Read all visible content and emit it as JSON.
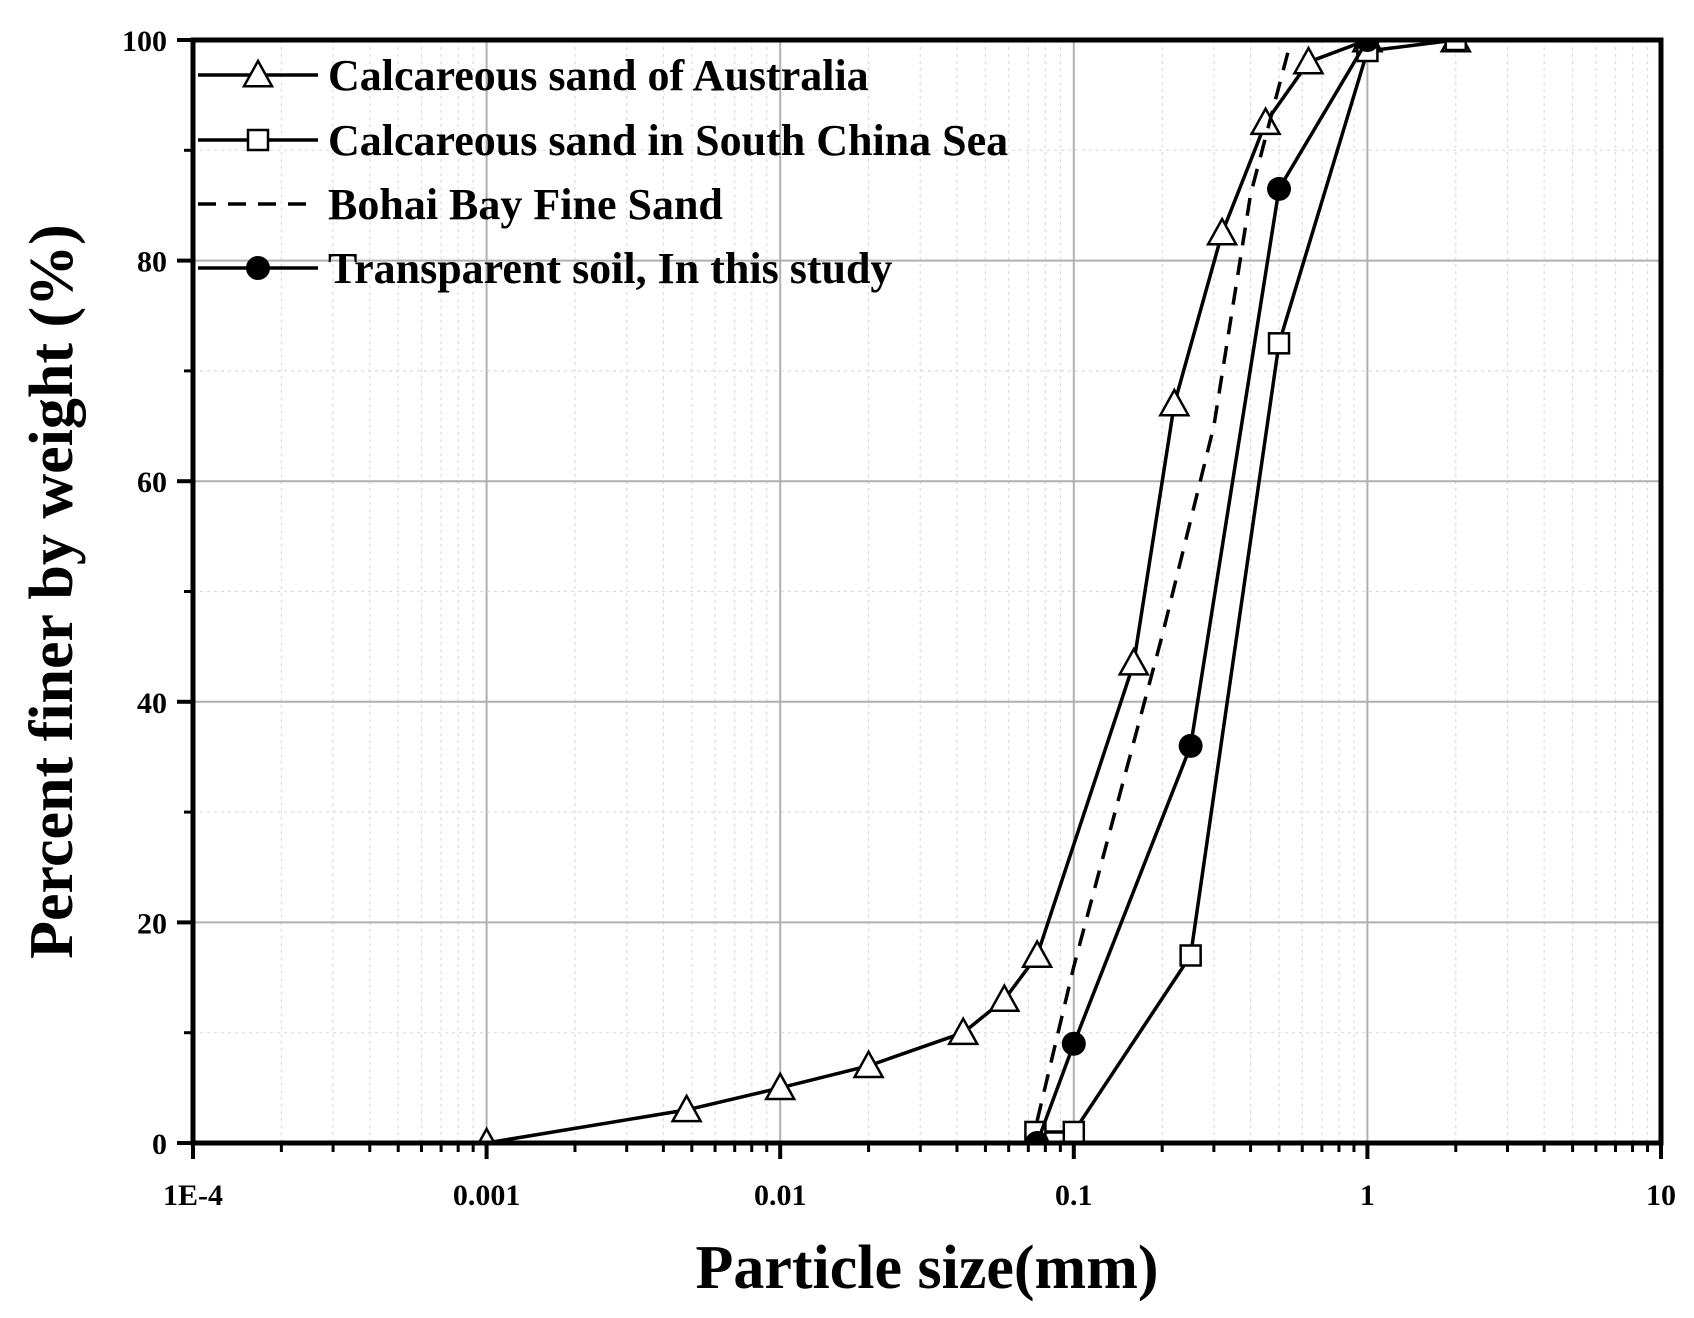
{
  "chart_data": {
    "type": "line",
    "xlabel": "Particle size(mm)",
    "ylabel": "Percent finer by weight (%)",
    "xscale": "log",
    "xlim": [
      0.0001,
      10
    ],
    "ylim": [
      0,
      100
    ],
    "xticks": [
      {
        "value": 0.0001,
        "label": "1E-4"
      },
      {
        "value": 0.001,
        "label": "0.001"
      },
      {
        "value": 0.01,
        "label": "0.01"
      },
      {
        "value": 0.1,
        "label": "0.1"
      },
      {
        "value": 1,
        "label": "1"
      },
      {
        "value": 10,
        "label": "10"
      }
    ],
    "yticks": [
      {
        "value": 0,
        "label": "0"
      },
      {
        "value": 20,
        "label": "20"
      },
      {
        "value": 40,
        "label": "40"
      },
      {
        "value": 60,
        "label": "60"
      },
      {
        "value": 80,
        "label": "80"
      },
      {
        "value": 100,
        "label": "100"
      }
    ],
    "grid": true,
    "legend_position": "top-left",
    "series": [
      {
        "name": "Calcareous sand of Australia",
        "marker": "triangle-open",
        "linestyle": "solid",
        "x": [
          0.001,
          0.0048,
          0.01,
          0.02,
          0.042,
          0.058,
          0.075,
          0.16,
          0.22,
          0.32,
          0.45,
          0.63,
          1.0,
          2.0
        ],
        "y": [
          0,
          3,
          5,
          7,
          10,
          13,
          17,
          43.5,
          67,
          82.5,
          92.5,
          98,
          100,
          100
        ]
      },
      {
        "name": "Calcareous sand in South China Sea",
        "marker": "square-open",
        "linestyle": "solid",
        "x": [
          0.074,
          0.1,
          0.25,
          0.5,
          1.0,
          2.0
        ],
        "y": [
          1,
          1,
          17,
          72.5,
          99,
          100
        ]
      },
      {
        "name": "Bohai Bay Fine Sand",
        "marker": "none",
        "linestyle": "dashed",
        "x": [
          0.075,
          0.1,
          0.2,
          0.3,
          0.4,
          0.55
        ],
        "y": [
          2,
          16,
          46,
          65,
          86,
          100
        ]
      },
      {
        "name": "Transparent soil, In this study",
        "marker": "circle-filled",
        "linestyle": "solid",
        "x": [
          0.075,
          0.1,
          0.25,
          0.5,
          1.0
        ],
        "y": [
          0,
          9,
          36,
          86.5,
          100
        ]
      }
    ]
  }
}
